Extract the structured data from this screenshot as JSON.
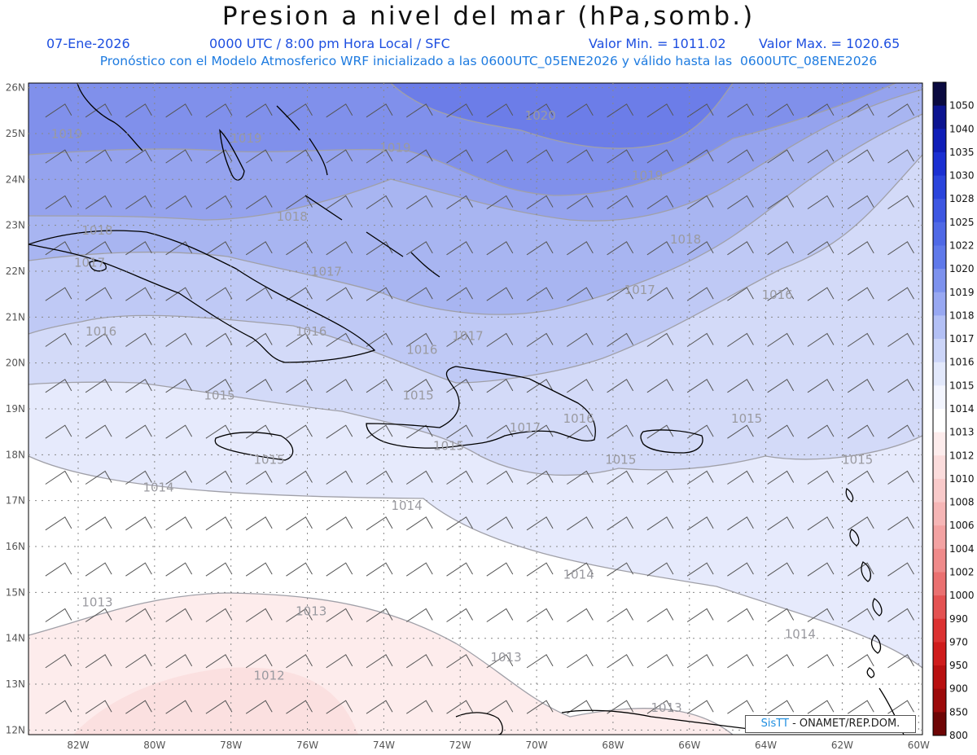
{
  "header": {
    "title": "Presion a nivel del mar (hPa,somb.)",
    "date": "07-Ene-2026",
    "time": "0000 UTC / 8:00 pm Hora Local / SFC",
    "vmin": "Valor Min. = 1011.02",
    "vmax": "Valor Max. = 1020.65",
    "forecast": "Pronóstico con el Modelo Atmosferico WRF inicializado a las 0600UTC_05ENE2026 y válido hasta las  0600UTC_08ENE2026"
  },
  "axes": {
    "lat_labels": [
      "26N",
      "25N",
      "24N",
      "23N",
      "22N",
      "21N",
      "20N",
      "19N",
      "18N",
      "17N",
      "16N",
      "15N",
      "14N",
      "13N",
      "12N"
    ],
    "lon_labels": [
      "82W",
      "80W",
      "78W",
      "76W",
      "74W",
      "72W",
      "70W",
      "68W",
      "66W",
      "64W",
      "62W",
      "60W"
    ]
  },
  "colorbar": {
    "levels": [
      "1050",
      "1040",
      "1035",
      "1030",
      "1028",
      "1025",
      "1022",
      "1020",
      "1019",
      "1018",
      "1017",
      "1016",
      "1015",
      "1014",
      "1013",
      "1012",
      "1010",
      "1008",
      "1006",
      "1004",
      "1002",
      "1000",
      "990",
      "970",
      "950",
      "900",
      "850",
      "800"
    ],
    "colors": [
      "#0a0a40",
      "#0c1490",
      "#0f1eb8",
      "#1a2fd2",
      "#2a44dc",
      "#3d57e2",
      "#4f69e6",
      "#5f79ea",
      "#7d92ee",
      "#98a8f2",
      "#b3c0f5",
      "#ccd5f8",
      "#e2e8fb",
      "#f3f5fe",
      "#ffffff",
      "#fdecec",
      "#fbdcdc",
      "#f9caca",
      "#f6b6b6",
      "#f3a2a2",
      "#ef8a8a",
      "#ea7070",
      "#e45252",
      "#dc3232",
      "#cf1c1c",
      "#b81010",
      "#9c0a0a",
      "#6e0505"
    ]
  },
  "contour_labels": [
    {
      "text": "1020",
      "lon": -69.9,
      "lat": 25.3
    },
    {
      "text": "1019",
      "lon": -82.3,
      "lat": 24.9
    },
    {
      "text": "1019",
      "lon": -77.6,
      "lat": 24.8
    },
    {
      "text": "1019",
      "lon": -73.7,
      "lat": 24.6
    },
    {
      "text": "1019",
      "lon": -67.1,
      "lat": 24.0
    },
    {
      "text": "1018",
      "lon": -81.5,
      "lat": 22.8
    },
    {
      "text": "1018",
      "lon": -76.4,
      "lat": 23.1
    },
    {
      "text": "1018",
      "lon": -66.1,
      "lat": 22.6
    },
    {
      "text": "1017",
      "lon": -81.7,
      "lat": 22.1
    },
    {
      "text": "1017",
      "lon": -75.5,
      "lat": 21.9
    },
    {
      "text": "1017",
      "lon": -67.3,
      "lat": 21.5
    },
    {
      "text": "1017",
      "lon": -71.8,
      "lat": 20.5
    },
    {
      "text": "1016",
      "lon": -63.7,
      "lat": 21.4
    },
    {
      "text": "1016",
      "lon": -81.4,
      "lat": 20.6
    },
    {
      "text": "1016",
      "lon": -75.9,
      "lat": 20.6
    },
    {
      "text": "1016",
      "lon": -73.0,
      "lat": 20.2
    },
    {
      "text": "1016",
      "lon": -68.9,
      "lat": 18.7
    },
    {
      "text": "1015",
      "lon": -78.3,
      "lat": 19.2
    },
    {
      "text": "1015",
      "lon": -73.1,
      "lat": 19.2
    },
    {
      "text": "1015",
      "lon": -61.6,
      "lat": 17.8
    },
    {
      "text": "1015",
      "lon": -64.5,
      "lat": 18.7
    },
    {
      "text": "1015",
      "lon": -67.8,
      "lat": 17.8
    },
    {
      "text": "1015",
      "lon": -77.0,
      "lat": 17.8
    },
    {
      "text": "1015",
      "lon": -72.3,
      "lat": 18.1
    },
    {
      "text": "1017",
      "lon": -70.3,
      "lat": 18.5
    },
    {
      "text": "1014",
      "lon": -79.9,
      "lat": 17.2
    },
    {
      "text": "1014",
      "lon": -73.4,
      "lat": 16.8
    },
    {
      "text": "1014",
      "lon": -68.9,
      "lat": 15.3
    },
    {
      "text": "1014",
      "lon": -63.1,
      "lat": 14.0
    },
    {
      "text": "1013",
      "lon": -81.5,
      "lat": 14.7
    },
    {
      "text": "1013",
      "lon": -75.9,
      "lat": 14.5
    },
    {
      "text": "1013",
      "lon": -70.8,
      "lat": 13.5
    },
    {
      "text": "1013",
      "lon": -66.6,
      "lat": 12.4
    },
    {
      "text": "1012",
      "lon": -77.0,
      "lat": 13.1
    }
  ],
  "credit": {
    "brand": "SisTT",
    "text": " - ONAMET/REP.DOM."
  }
}
